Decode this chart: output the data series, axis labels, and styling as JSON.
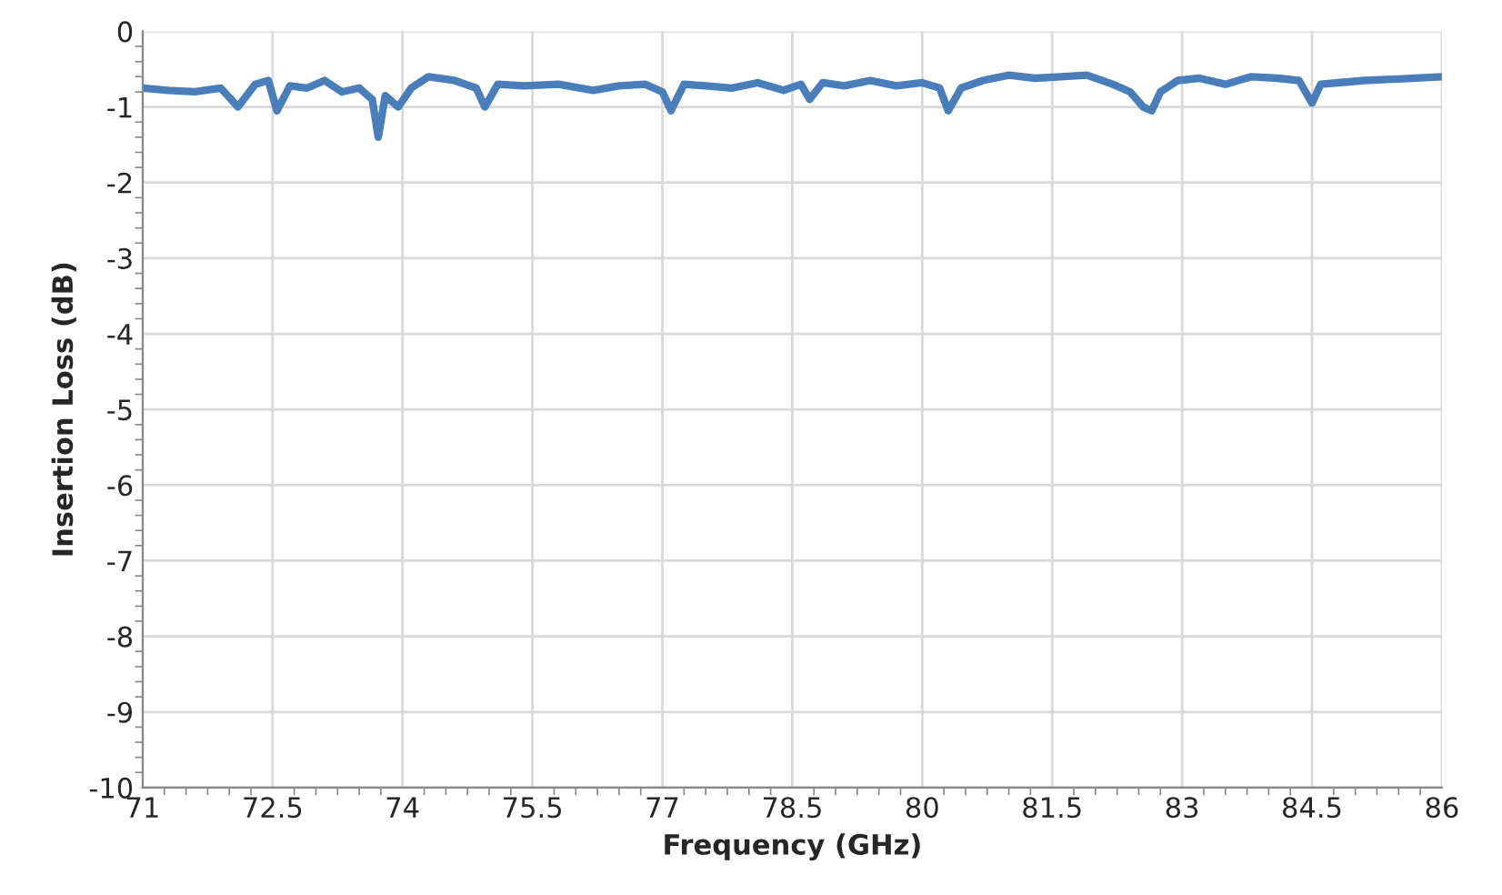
{
  "chart_data": {
    "type": "line",
    "xlabel": "Frequency (GHz)",
    "ylabel": "Insertion Loss (dB)",
    "xlim": [
      71,
      86
    ],
    "ylim": [
      -10,
      0
    ],
    "xticks": [
      71,
      72.5,
      74,
      75.5,
      77,
      78.5,
      80,
      81.5,
      83,
      84.5,
      86
    ],
    "yticks": [
      -10,
      -9,
      -8,
      -7,
      -6,
      -5,
      -4,
      -3,
      -2,
      -1,
      0
    ],
    "grid": true,
    "legend": false,
    "series": [
      {
        "color": "#4a7ebb",
        "x": [
          71,
          71.3,
          71.6,
          71.9,
          72.1,
          72.3,
          72.45,
          72.55,
          72.7,
          72.9,
          73.1,
          73.3,
          73.5,
          73.65,
          73.72,
          73.8,
          73.95,
          74.1,
          74.3,
          74.6,
          74.85,
          74.95,
          75.1,
          75.4,
          75.8,
          76.2,
          76.5,
          76.8,
          77.0,
          77.1,
          77.25,
          77.5,
          77.8,
          78.1,
          78.4,
          78.6,
          78.7,
          78.85,
          79.1,
          79.4,
          79.7,
          80.0,
          80.2,
          80.3,
          80.45,
          80.7,
          81.0,
          81.3,
          81.6,
          81.9,
          82.2,
          82.4,
          82.55,
          82.65,
          82.75,
          82.95,
          83.2,
          83.5,
          83.8,
          84.1,
          84.35,
          84.5,
          84.6,
          84.8,
          85.1,
          85.5,
          86
        ],
        "values": [
          -0.75,
          -0.78,
          -0.8,
          -0.75,
          -1.0,
          -0.7,
          -0.65,
          -1.05,
          -0.72,
          -0.75,
          -0.65,
          -0.8,
          -0.75,
          -0.9,
          -1.4,
          -0.85,
          -1.0,
          -0.75,
          -0.6,
          -0.65,
          -0.75,
          -1.0,
          -0.7,
          -0.72,
          -0.7,
          -0.78,
          -0.72,
          -0.7,
          -0.8,
          -1.05,
          -0.7,
          -0.72,
          -0.75,
          -0.68,
          -0.78,
          -0.7,
          -0.9,
          -0.68,
          -0.72,
          -0.65,
          -0.72,
          -0.68,
          -0.75,
          -1.05,
          -0.75,
          -0.65,
          -0.58,
          -0.62,
          -0.6,
          -0.58,
          -0.7,
          -0.8,
          -1.0,
          -1.05,
          -0.8,
          -0.65,
          -0.62,
          -0.7,
          -0.6,
          -0.62,
          -0.65,
          -0.95,
          -0.7,
          -0.68,
          -0.65,
          -0.63,
          -0.6
        ]
      }
    ]
  }
}
